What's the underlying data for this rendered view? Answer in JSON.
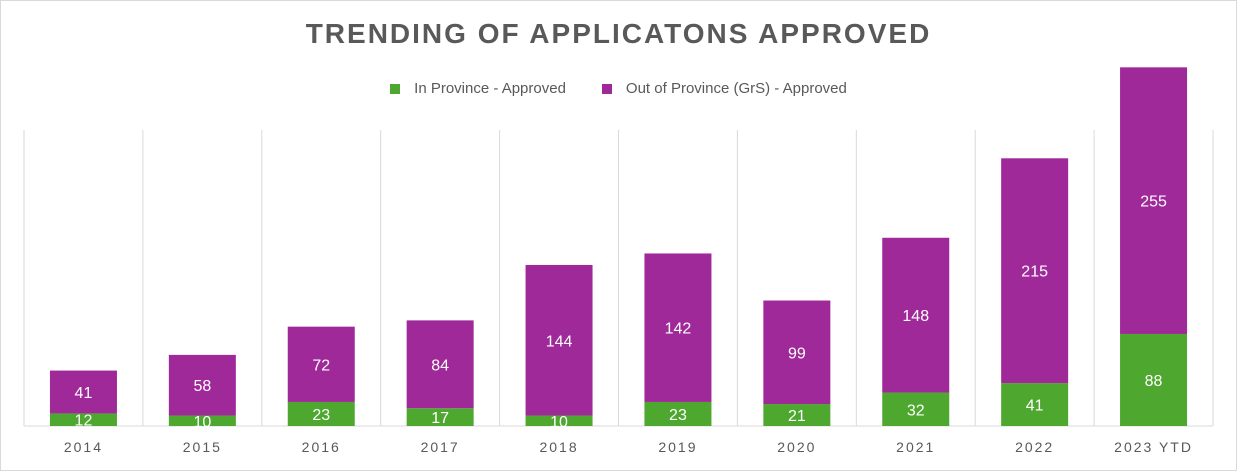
{
  "chart_data": {
    "type": "bar",
    "stacked": true,
    "title": "TRENDING OF APPLICATONS APPROVED",
    "xlabel": "",
    "ylabel": "",
    "categories": [
      "2014",
      "2015",
      "2016",
      "2017",
      "2018",
      "2019",
      "2020",
      "2021",
      "2022",
      "2023 YTD"
    ],
    "series": [
      {
        "name": "In Province - Approved",
        "color": "#4ea72e",
        "values": [
          12,
          10,
          23,
          17,
          10,
          23,
          21,
          32,
          41,
          88
        ]
      },
      {
        "name": "Out of Province (GrS) - Approved",
        "color": "#a0299a",
        "values": [
          41,
          58,
          72,
          84,
          144,
          142,
          99,
          148,
          215,
          255
        ]
      }
    ],
    "ylim": [
      0,
      350
    ],
    "grid": "vertical separators",
    "legend_position": "top"
  }
}
